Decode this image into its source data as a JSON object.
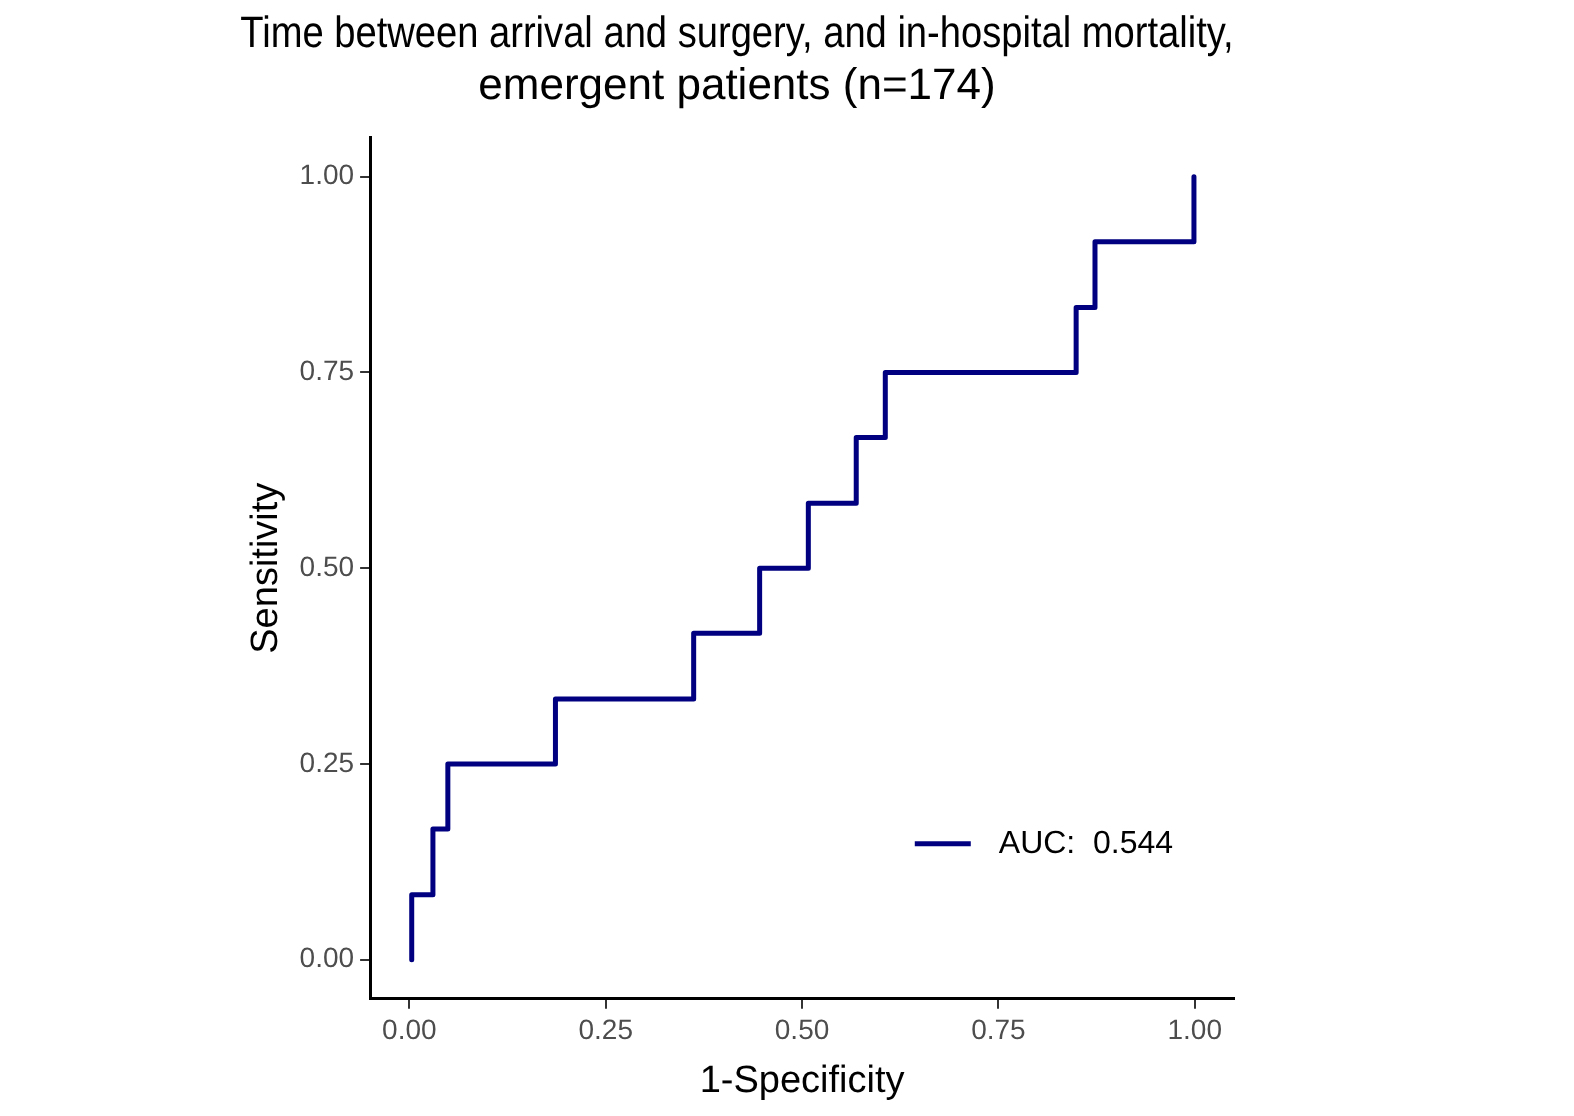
{
  "chart_data": {
    "type": "step",
    "title": "Time between arrival and surgery, and in-hospital mortality,\nemergent patients (n=174)",
    "xlabel": "1-Specificity",
    "ylabel": "Sensitivity",
    "x": [
      0.003,
      0.003,
      0.03,
      0.049,
      0.186,
      0.362,
      0.446,
      0.508,
      0.569,
      0.606,
      0.849,
      0.873,
      0.999
    ],
    "series": [
      {
        "name": "AUC:  0.544",
        "color": "#000080",
        "values": [
          0,
          0.083,
          0.167,
          0.25,
          0.333,
          0.417,
          0.5,
          0.583,
          0.667,
          0.75,
          0.833,
          0.917,
          1.0
        ]
      }
    ],
    "xlim": [
      -0.05,
      1.05
    ],
    "ylim": [
      -0.05,
      1.05
    ],
    "xticks": [
      {
        "value": 0,
        "label": "0.00"
      },
      {
        "value": 0.25,
        "label": "0.25"
      },
      {
        "value": 0.5,
        "label": "0.50"
      },
      {
        "value": 0.75,
        "label": "0.75"
      },
      {
        "value": 1,
        "label": "1.00"
      }
    ],
    "yticks": [
      {
        "value": 0,
        "label": "0.00"
      },
      {
        "value": 0.25,
        "label": "0.25"
      },
      {
        "value": 0.5,
        "label": "0.50"
      },
      {
        "value": 0.75,
        "label": "0.75"
      },
      {
        "value": 1,
        "label": "1.00"
      }
    ],
    "grid": false,
    "legend": "bottom right",
    "line_style": "solid",
    "marker": "none"
  }
}
